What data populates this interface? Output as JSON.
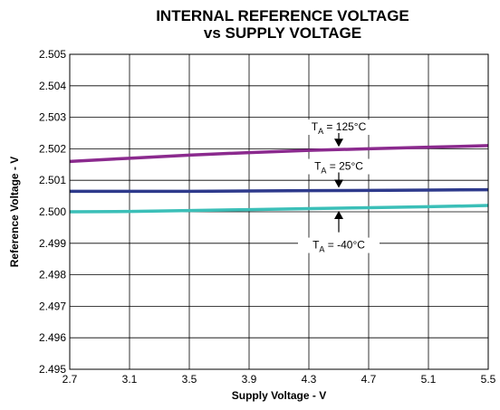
{
  "chart_data": {
    "type": "line",
    "title": [
      "INTERNAL REFERENCE VOLTAGE",
      "vs SUPPLY VOLTAGE"
    ],
    "xlabel": "Supply Voltage - V",
    "ylabel": "Reference Voltage - V",
    "xlim": [
      2.7,
      5.5
    ],
    "ylim": [
      2.495,
      2.505
    ],
    "x_ticks": [
      "2.7",
      "3.1",
      "3.5",
      "3.9",
      "4.3",
      "4.7",
      "5.1",
      "5.5"
    ],
    "y_ticks": [
      "2.495",
      "2.496",
      "2.497",
      "2.498",
      "2.499",
      "2.500",
      "2.501",
      "2.502",
      "2.503",
      "2.504",
      "2.505"
    ],
    "grid": true,
    "series": [
      {
        "name": "TA = 125°C",
        "color": "#8b2a8e",
        "x": [
          2.7,
          3.1,
          3.5,
          3.9,
          4.3,
          4.7,
          5.1,
          5.5
        ],
        "y": [
          2.5016,
          2.5017,
          2.5018,
          2.50188,
          2.50195,
          2.502,
          2.50205,
          2.5021
        ]
      },
      {
        "name": "TA = 25°C",
        "color": "#2e3a8c",
        "x": [
          2.7,
          3.1,
          3.5,
          3.9,
          4.3,
          4.7,
          5.1,
          5.5
        ],
        "y": [
          2.50065,
          2.50065,
          2.50065,
          2.50066,
          2.50067,
          2.50068,
          2.50069,
          2.5007
        ]
      },
      {
        "name": "TA = -40°C",
        "color": "#3bbfb8",
        "x": [
          2.7,
          3.1,
          3.5,
          3.9,
          4.3,
          4.7,
          5.1,
          5.5
        ],
        "y": [
          2.5,
          2.50001,
          2.50004,
          2.50007,
          2.5001,
          2.50013,
          2.50016,
          2.5002
        ]
      }
    ],
    "annotations": [
      {
        "series": 0,
        "main": "T",
        "sub": "A",
        "rest": " = 125°C",
        "x": 4.5
      },
      {
        "series": 1,
        "main": "T",
        "sub": "A",
        "rest": " = 25°C",
        "x": 4.5
      },
      {
        "series": 2,
        "main": "T",
        "sub": "A",
        "rest": " = -40°C",
        "x": 4.5
      }
    ]
  }
}
